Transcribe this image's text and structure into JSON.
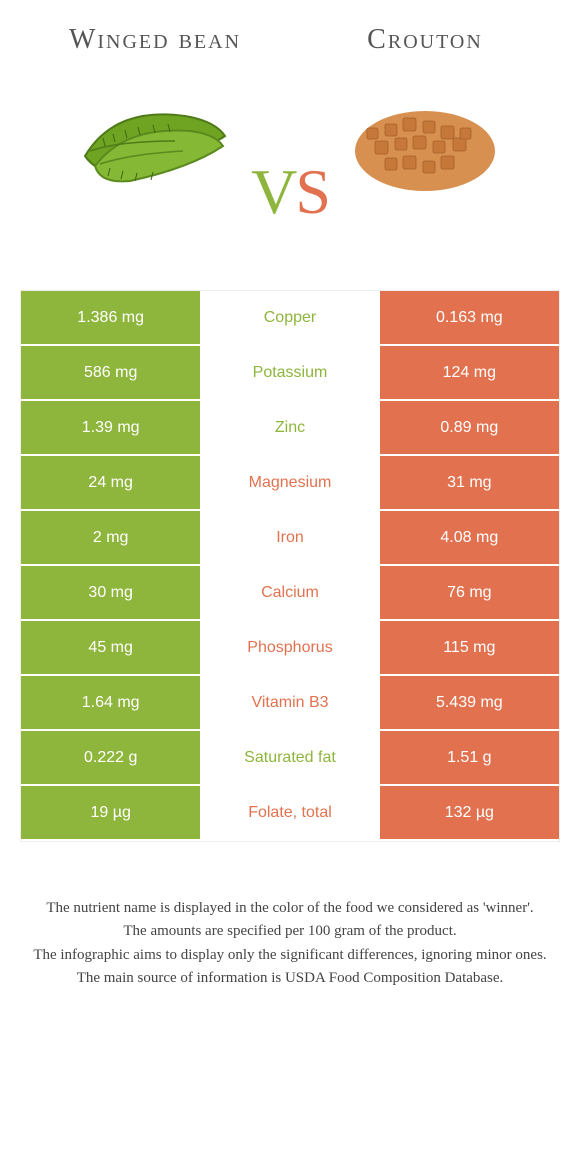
{
  "colors": {
    "left": "#8eb53c",
    "right": "#e2724f",
    "rowBorder": "#ffffff",
    "background": "#ffffff",
    "titleText": "#555555",
    "footerText": "#444444"
  },
  "header": {
    "leftTitle": "Winged bean",
    "rightTitle": "Crouton",
    "vsV": "V",
    "vsS": "S"
  },
  "rows": [
    {
      "left": "1.386 mg",
      "name": "Copper",
      "right": "0.163 mg",
      "winner": "left"
    },
    {
      "left": "586 mg",
      "name": "Potassium",
      "right": "124 mg",
      "winner": "left"
    },
    {
      "left": "1.39 mg",
      "name": "Zinc",
      "right": "0.89 mg",
      "winner": "left"
    },
    {
      "left": "24 mg",
      "name": "Magnesium",
      "right": "31 mg",
      "winner": "right"
    },
    {
      "left": "2 mg",
      "name": "Iron",
      "right": "4.08 mg",
      "winner": "right"
    },
    {
      "left": "30 mg",
      "name": "Calcium",
      "right": "76 mg",
      "winner": "right"
    },
    {
      "left": "45 mg",
      "name": "Phosphorus",
      "right": "115 mg",
      "winner": "right"
    },
    {
      "left": "1.64 mg",
      "name": "Vitamin B3",
      "right": "5.439 mg",
      "winner": "right"
    },
    {
      "left": "0.222 g",
      "name": "Saturated fat",
      "right": "1.51 g",
      "winner": "left"
    },
    {
      "left": "19 µg",
      "name": "Folate, total",
      "right": "132 µg",
      "winner": "right"
    }
  ],
  "footer": {
    "line1": "The nutrient name is displayed in the color of the food we considered as 'winner'.",
    "line2": "The amounts are specified per 100 gram of the product.",
    "line3": "The infographic aims to display only the significant differences, ignoring minor ones.",
    "line4": "The main source of information is USDA Food Composition Database."
  },
  "typography": {
    "titleFontSize": 28,
    "vsFontSize": 64,
    "cellFontSize": 16,
    "footerFontSize": 15
  }
}
